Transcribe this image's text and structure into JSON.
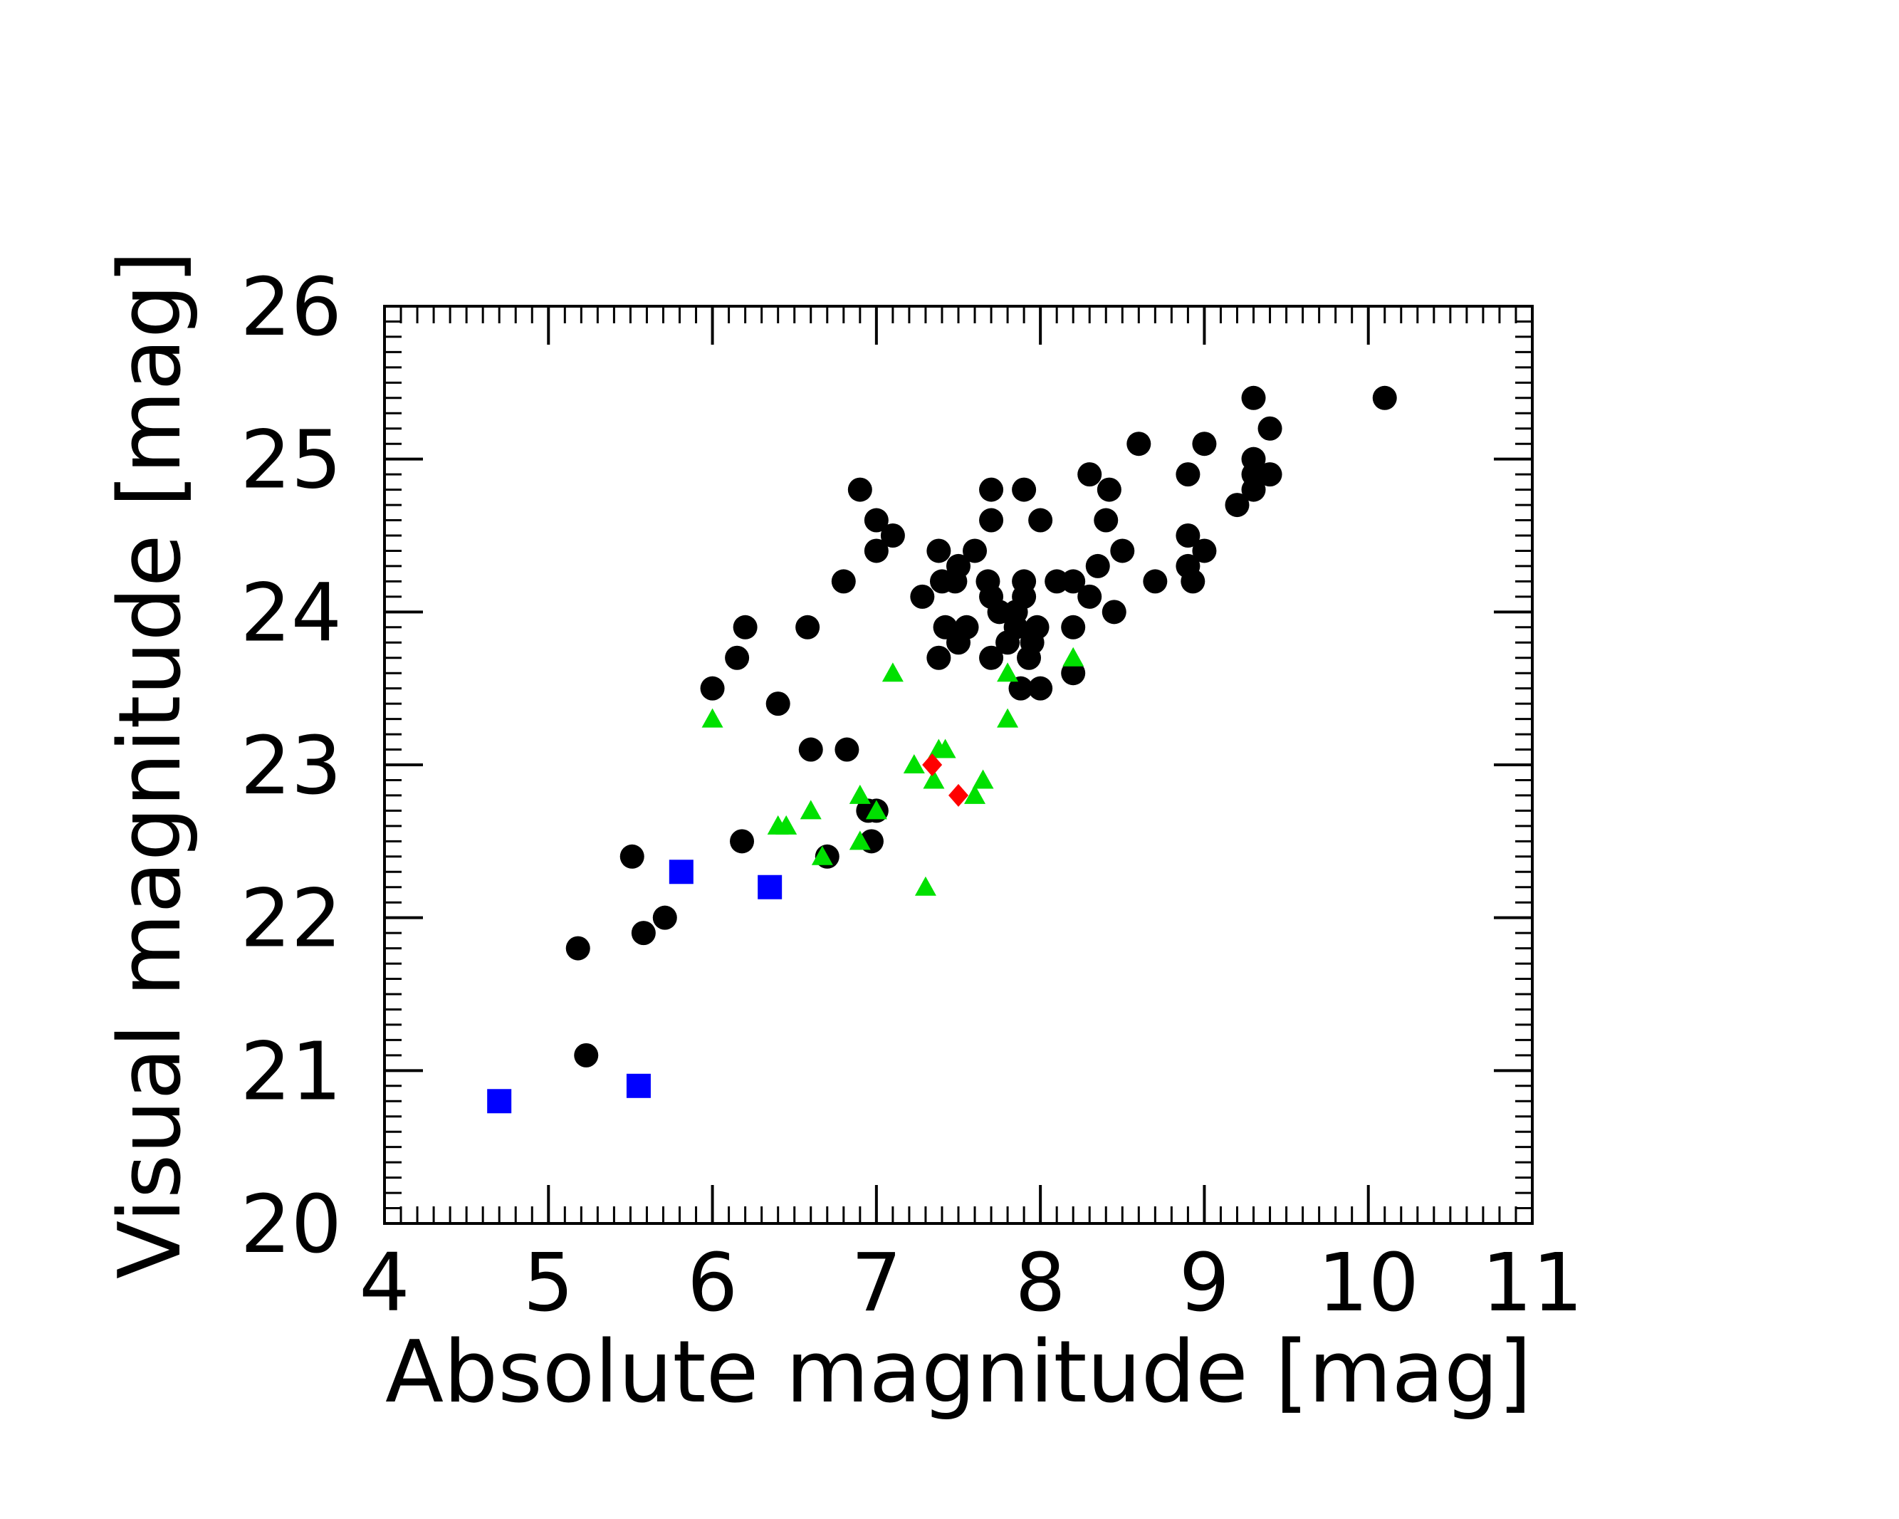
{
  "chart_data": {
    "type": "scatter",
    "title": "",
    "xlabel": "Absolute magnitude [mag]",
    "ylabel": "Visual magnitude [mag]",
    "xlim": [
      4,
      11
    ],
    "ylim": [
      20,
      26
    ],
    "xticks": [
      4,
      5,
      6,
      7,
      8,
      9,
      10,
      11
    ],
    "yticks": [
      20,
      21,
      22,
      23,
      24,
      25,
      26
    ],
    "x_tick_labels": [
      "4",
      "5",
      "6",
      "7",
      "8",
      "9",
      "10",
      "11"
    ],
    "y_tick_labels": [
      "20",
      "21",
      "22",
      "23",
      "24",
      "25",
      "26"
    ],
    "grid": false,
    "legend": "none",
    "series": [
      {
        "marker": "circle",
        "color": "#000000",
        "points": [
          [
            5.18,
            21.8
          ],
          [
            5.23,
            21.1
          ],
          [
            5.51,
            22.4
          ],
          [
            5.58,
            21.9
          ],
          [
            5.71,
            22.0
          ],
          [
            6.0,
            23.5
          ],
          [
            6.15,
            23.7
          ],
          [
            6.2,
            23.9
          ],
          [
            6.18,
            22.5
          ],
          [
            6.4,
            23.4
          ],
          [
            6.58,
            23.9
          ],
          [
            6.6,
            23.1
          ],
          [
            6.8,
            24.2
          ],
          [
            6.82,
            23.1
          ],
          [
            6.9,
            24.8
          ],
          [
            6.95,
            22.7
          ],
          [
            6.97,
            22.5
          ],
          [
            6.7,
            22.4
          ],
          [
            7.0,
            22.7
          ],
          [
            7.0,
            24.6
          ],
          [
            7.0,
            24.4
          ],
          [
            7.1,
            24.5
          ],
          [
            7.28,
            24.1
          ],
          [
            7.38,
            24.4
          ],
          [
            7.4,
            24.2
          ],
          [
            7.42,
            23.9
          ],
          [
            7.38,
            23.7
          ],
          [
            7.5,
            24.3
          ],
          [
            7.48,
            24.2
          ],
          [
            7.5,
            23.8
          ],
          [
            7.55,
            23.9
          ],
          [
            7.6,
            24.4
          ],
          [
            7.68,
            24.2
          ],
          [
            7.7,
            24.1
          ],
          [
            7.7,
            24.6
          ],
          [
            7.7,
            24.8
          ],
          [
            7.7,
            23.7
          ],
          [
            7.75,
            24.0
          ],
          [
            7.8,
            23.8
          ],
          [
            7.85,
            24.0
          ],
          [
            7.85,
            23.9
          ],
          [
            7.9,
            24.2
          ],
          [
            7.9,
            24.1
          ],
          [
            7.88,
            23.5
          ],
          [
            7.9,
            24.8
          ],
          [
            7.93,
            23.7
          ],
          [
            7.95,
            23.8
          ],
          [
            7.98,
            23.9
          ],
          [
            8.0,
            24.6
          ],
          [
            8.0,
            23.5
          ],
          [
            8.1,
            24.2
          ],
          [
            8.2,
            24.2
          ],
          [
            8.2,
            23.9
          ],
          [
            8.2,
            23.6
          ],
          [
            8.3,
            24.9
          ],
          [
            8.3,
            24.1
          ],
          [
            8.35,
            24.3
          ],
          [
            8.4,
            24.6
          ],
          [
            8.42,
            24.8
          ],
          [
            8.45,
            24.0
          ],
          [
            8.5,
            24.4
          ],
          [
            8.6,
            25.1
          ],
          [
            8.7,
            24.2
          ],
          [
            8.9,
            24.9
          ],
          [
            8.9,
            24.5
          ],
          [
            8.9,
            24.3
          ],
          [
            8.93,
            24.2
          ],
          [
            9.0,
            24.4
          ],
          [
            9.0,
            25.1
          ],
          [
            9.2,
            24.7
          ],
          [
            9.3,
            24.8
          ],
          [
            9.3,
            24.9
          ],
          [
            9.3,
            25.0
          ],
          [
            9.3,
            25.4
          ],
          [
            9.4,
            24.9
          ],
          [
            9.4,
            25.2
          ],
          [
            10.1,
            25.4
          ]
        ]
      },
      {
        "marker": "triangle",
        "color": "#00e000",
        "points": [
          [
            6.0,
            23.3
          ],
          [
            6.4,
            22.6
          ],
          [
            6.45,
            22.6
          ],
          [
            6.6,
            22.7
          ],
          [
            6.67,
            22.4
          ],
          [
            6.9,
            22.8
          ],
          [
            6.9,
            22.5
          ],
          [
            7.0,
            22.7
          ],
          [
            7.1,
            23.6
          ],
          [
            7.23,
            23.0
          ],
          [
            7.3,
            22.2
          ],
          [
            7.35,
            22.9
          ],
          [
            7.38,
            23.1
          ],
          [
            7.42,
            23.1
          ],
          [
            7.6,
            22.8
          ],
          [
            7.65,
            22.9
          ],
          [
            7.8,
            23.6
          ],
          [
            7.8,
            23.3
          ],
          [
            8.2,
            23.7
          ]
        ]
      },
      {
        "marker": "diamond",
        "color": "#ff0000",
        "points": [
          [
            7.34,
            23.0
          ],
          [
            7.5,
            22.8
          ]
        ]
      },
      {
        "marker": "square",
        "color": "#0000ff",
        "points": [
          [
            4.7,
            20.8
          ],
          [
            5.55,
            20.9
          ],
          [
            5.81,
            22.3
          ],
          [
            6.35,
            22.2
          ]
        ]
      }
    ]
  }
}
